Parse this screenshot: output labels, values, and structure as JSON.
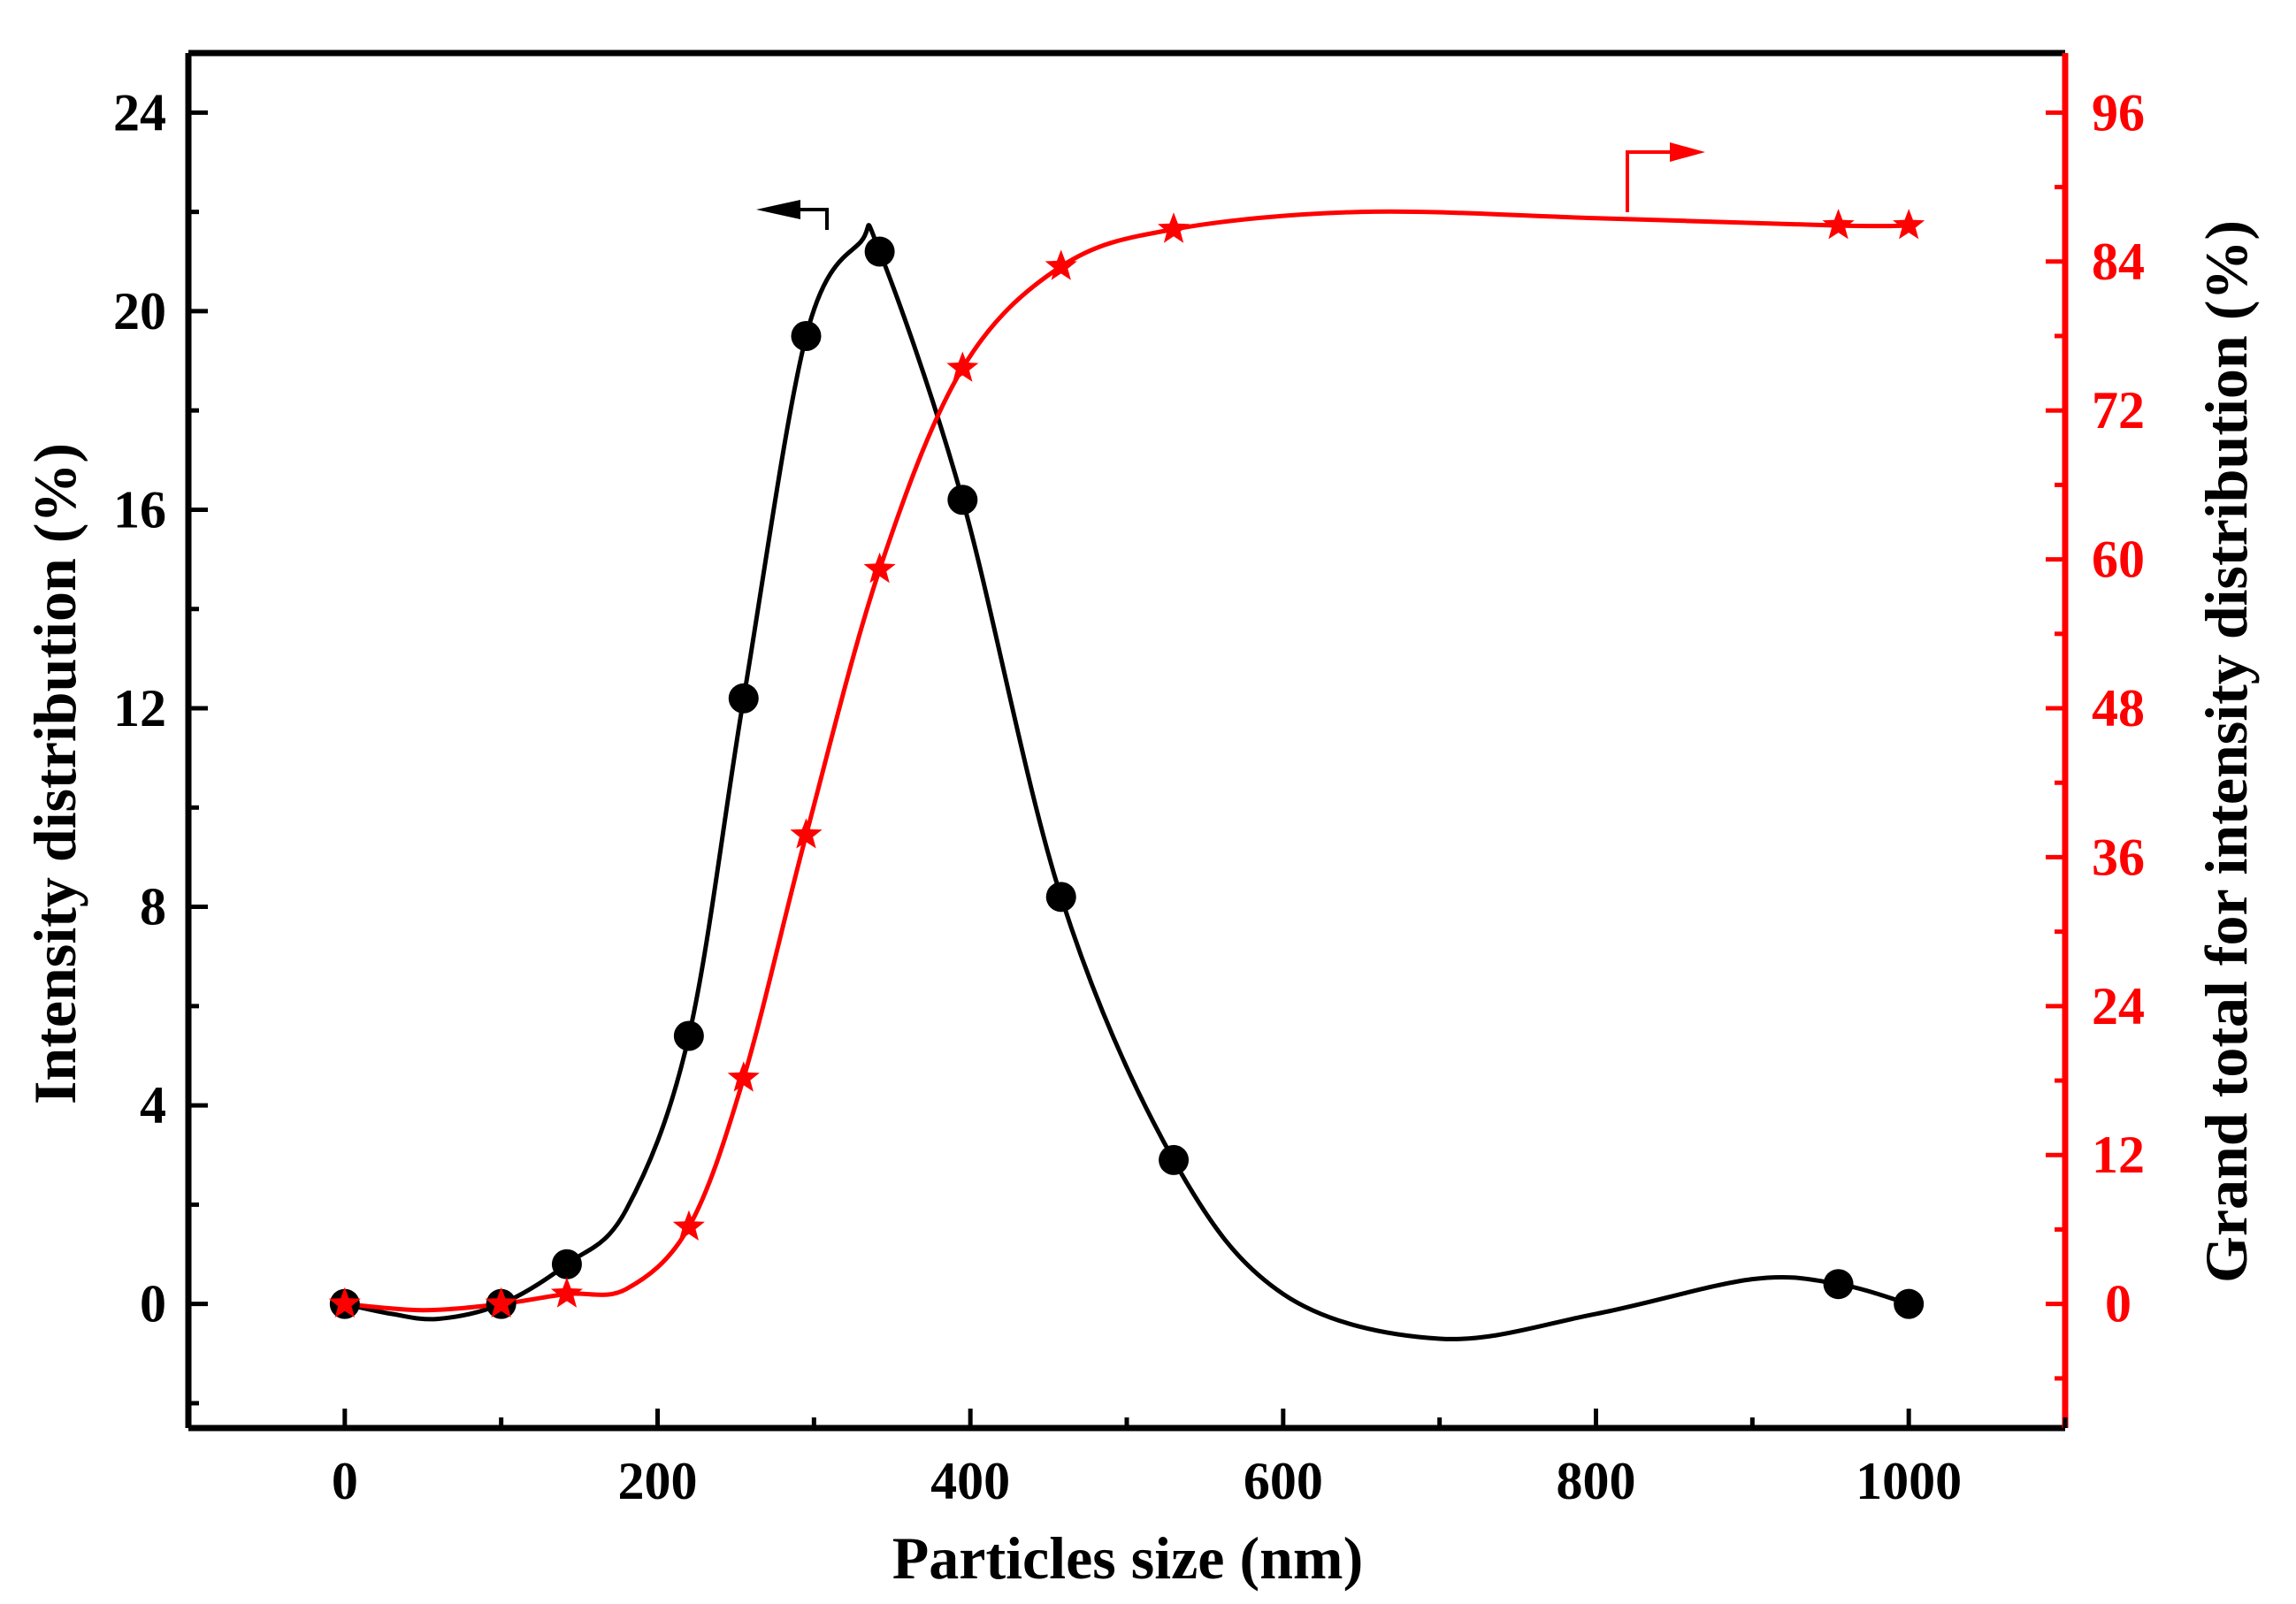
{
  "chart_data": {
    "type": "line",
    "title": "",
    "xlabel": "Particles size (nm)",
    "ylabel_left": "Intensity distribution (%)",
    "ylabel_right": "Grand total for intensity distribution (%)",
    "xlim": [
      -100,
      1100
    ],
    "ylim_left": [
      -2.5,
      25.2
    ],
    "ylim_right": [
      -10,
      100.8
    ],
    "x_ticks": [
      0,
      200,
      400,
      600,
      800,
      1000
    ],
    "x_tick_labels": [
      "0",
      "200",
      "400",
      "600",
      "800",
      "1000"
    ],
    "y_left_ticks": [
      0,
      4,
      8,
      12,
      16,
      20,
      24
    ],
    "y_left_tick_labels": [
      "0",
      "4",
      "8",
      "12",
      "16",
      "20",
      "24"
    ],
    "y_right_ticks": [
      0,
      12,
      24,
      36,
      48,
      60,
      72,
      84,
      96
    ],
    "y_right_tick_labels": [
      "0",
      "12",
      "24",
      "36",
      "48",
      "60",
      "72",
      "84",
      "96"
    ],
    "grid": false,
    "series": [
      {
        "name": "Intensity distribution",
        "axis": "left",
        "color": "#000000",
        "marker": "circle",
        "x": [
          0,
          100,
          142,
          220,
          255,
          295,
          342,
          395,
          458,
          530,
          955,
          1000
        ],
        "values": [
          0,
          0,
          0.8,
          5.4,
          12.2,
          19.5,
          21.2,
          16.2,
          8.2,
          2.9,
          0.4,
          0
        ],
        "curve_x": [
          0,
          30,
          60,
          100,
          142,
          180,
          220,
          255,
          295,
          330,
          342,
          395,
          458,
          530,
          600,
          700,
          800,
          900,
          955,
          1000
        ],
        "curve_values": [
          0,
          -0.2,
          -0.3,
          0,
          0.8,
          1.9,
          5.4,
          12.2,
          19.5,
          21.4,
          21.2,
          16.2,
          8.2,
          2.9,
          0.2,
          -0.7,
          -0.2,
          0.5,
          0.4,
          0
        ],
        "direction_marker": "left"
      },
      {
        "name": "Grand total for intensity distribution",
        "axis": "right",
        "color": "#ff0000",
        "marker": "star",
        "x": [
          0,
          100,
          142,
          220,
          255,
          295,
          342,
          395,
          458,
          530,
          955,
          1000
        ],
        "values": [
          0,
          0,
          0.8,
          6.2,
          18.2,
          37.8,
          59.2,
          75.4,
          83.6,
          86.6,
          86.9,
          86.9
        ],
        "curve_x": [
          0,
          50,
          100,
          142,
          180,
          220,
          255,
          295,
          342,
          395,
          458,
          530,
          650,
          800,
          955,
          1000
        ],
        "curve_values": [
          0,
          -0.5,
          0,
          0.8,
          1.2,
          6.2,
          18.2,
          37.8,
          59.2,
          75.4,
          83.6,
          86.6,
          88,
          87.5,
          86.9,
          86.9
        ],
        "direction_marker": "right"
      }
    ]
  }
}
